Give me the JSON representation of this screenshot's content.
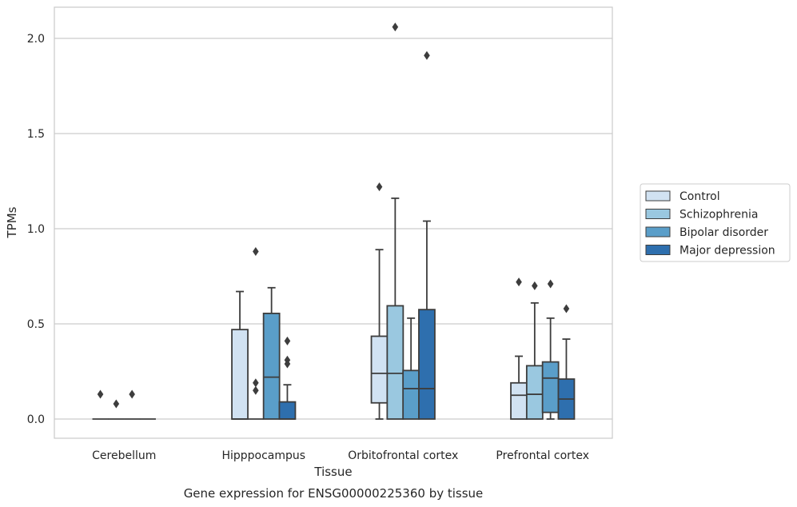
{
  "chart_data": {
    "type": "box",
    "title": "",
    "caption": "Gene expression for ENSG00000225360 by tissue",
    "xlabel": "Tissue",
    "ylabel": "TPMs",
    "ylim": [
      -0.1,
      2.17
    ],
    "yticks": [
      0.0,
      0.5,
      1.0,
      1.5,
      2.0
    ],
    "ytick_labels": [
      "0.0",
      "0.5",
      "1.0",
      "1.5",
      "2.0"
    ],
    "grid": "horizontal",
    "legend_position": "right",
    "categories": [
      "Cerebellum",
      "Hipppocampus",
      "Orbitofrontal cortex",
      "Prefrontal cortex"
    ],
    "series": [
      {
        "name": "Control",
        "color": "#d1e2f2",
        "boxes": [
          {
            "whislo": 0,
            "q1": 0,
            "med": 0,
            "q3": 0,
            "whishi": 0,
            "fliers": [
              0.13
            ]
          },
          {
            "whislo": 0,
            "q1": 0,
            "med": 0,
            "q3": 0.47,
            "whishi": 0.67,
            "fliers": []
          },
          {
            "whislo": 0,
            "q1": 0.085,
            "med": 0.24,
            "q3": 0.435,
            "whislo_note": "",
            "whishi": 0.89,
            "fliers": [
              1.22
            ]
          },
          {
            "whislo": 0,
            "q1": 0,
            "med": 0.125,
            "q3": 0.19,
            "whishi": 0.33,
            "fliers": [
              0.72
            ]
          }
        ]
      },
      {
        "name": "Schizophrenia",
        "color": "#9ac8e0",
        "boxes": [
          {
            "whislo": 0,
            "q1": 0,
            "med": 0,
            "q3": 0,
            "whishi": 0,
            "fliers": [
              0.08
            ]
          },
          {
            "whislo": 0,
            "q1": 0,
            "med": 0,
            "q3": 0,
            "whishi": 0,
            "fliers": [
              0.19,
              0.15,
              0.88
            ]
          },
          {
            "whislo": 0,
            "q1": 0,
            "med": 0.24,
            "q3": 0.595,
            "whishi": 1.16,
            "fliers": [
              2.06
            ]
          },
          {
            "whislo": 0,
            "q1": 0,
            "med": 0.13,
            "q3": 0.28,
            "whishi": 0.61,
            "fliers": [
              0.7
            ]
          }
        ]
      },
      {
        "name": "Bipolar disorder",
        "color": "#5a9ec9",
        "boxes": [
          {
            "whislo": 0,
            "q1": 0,
            "med": 0,
            "q3": 0,
            "whishi": 0,
            "fliers": [
              0.13
            ]
          },
          {
            "whislo": 0,
            "q1": 0,
            "med": 0.22,
            "q3": 0.555,
            "whishi": 0.69,
            "fliers": []
          },
          {
            "whislo": 0,
            "q1": 0,
            "med": 0.16,
            "q3": 0.255,
            "whishi": 0.53,
            "fliers": []
          },
          {
            "whislo": 0,
            "q1": 0.035,
            "med": 0.215,
            "q3": 0.3,
            "whishi": 0.53,
            "fliers": [
              0.71
            ]
          }
        ]
      },
      {
        "name": "Major depression",
        "color": "#2e6fae",
        "boxes": [
          {
            "whislo": 0,
            "q1": 0,
            "med": 0,
            "q3": 0,
            "whishi": 0,
            "fliers": []
          },
          {
            "whislo": 0,
            "q1": 0,
            "med": 0,
            "q3": 0.09,
            "whishi": 0.18,
            "fliers": [
              0.41,
              0.31,
              0.29
            ]
          },
          {
            "whislo": 0,
            "q1": 0,
            "med": 0.16,
            "q3": 0.575,
            "whishi": 1.04,
            "fliers": [
              1.91
            ]
          },
          {
            "whislo": 0,
            "q1": 0,
            "med": 0.105,
            "q3": 0.21,
            "whishi": 0.42,
            "fliers": [
              0.58
            ]
          }
        ]
      }
    ]
  }
}
